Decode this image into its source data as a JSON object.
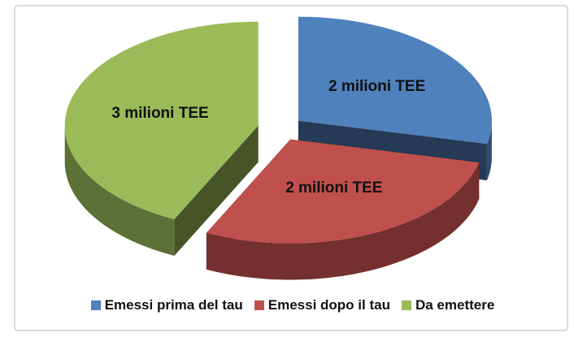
{
  "chart_data": {
    "type": "pie",
    "categories": [
      "Emessi prima del tau",
      "Emessi dopo il tau",
      "Da emettere"
    ],
    "values": [
      2,
      2,
      3
    ],
    "value_labels": [
      "2 milioni TEE",
      "2 milioni TEE",
      "3 milioni TEE"
    ],
    "colors": [
      "#4f81bd",
      "#c0504d",
      "#9bbb59"
    ],
    "legend": "bottom"
  }
}
